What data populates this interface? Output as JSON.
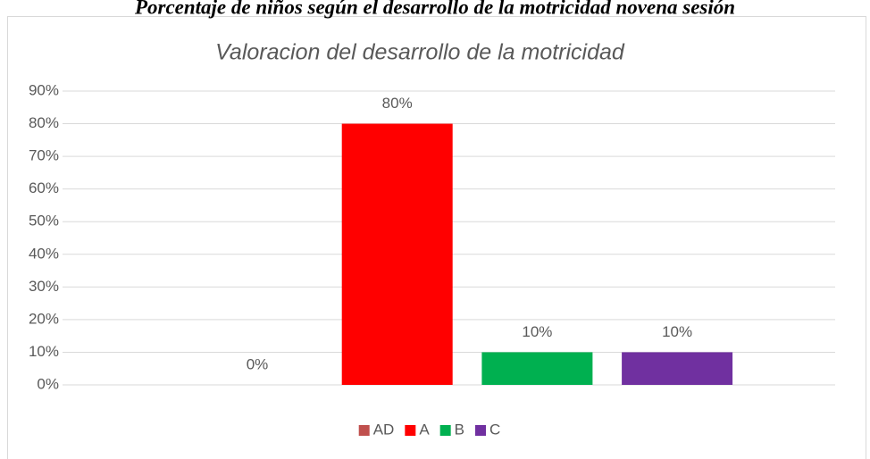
{
  "heading": "Porcentaje de niños según el desarrollo de la motricidad novena sesión",
  "chart_data": {
    "type": "bar",
    "title": "Valoracion del desarrollo de la motricidad",
    "categories": [
      null
    ],
    "series": [
      {
        "name": "AD",
        "color": "#c0504d",
        "values": [
          0
        ],
        "value_labels": [
          "0%"
        ]
      },
      {
        "name": "A",
        "color": "#ff0000",
        "values": [
          80
        ],
        "value_labels": [
          "80%"
        ]
      },
      {
        "name": "B",
        "color": "#00b050",
        "values": [
          10
        ],
        "value_labels": [
          "10%"
        ]
      },
      {
        "name": "C",
        "color": "#7030a0",
        "values": [
          10
        ],
        "value_labels": [
          "10%"
        ]
      }
    ],
    "ylim": [
      0,
      90
    ],
    "yticks": [
      {
        "value": 0,
        "label": "0%"
      },
      {
        "value": 10,
        "label": "10%"
      },
      {
        "value": 20,
        "label": "20%"
      },
      {
        "value": 30,
        "label": "30%"
      },
      {
        "value": 40,
        "label": "40%"
      },
      {
        "value": 50,
        "label": "50%"
      },
      {
        "value": 60,
        "label": "60%"
      },
      {
        "value": 70,
        "label": "70%"
      },
      {
        "value": 80,
        "label": "80%"
      },
      {
        "value": 90,
        "label": "90%"
      }
    ],
    "grid": true,
    "legend": "bottom"
  }
}
